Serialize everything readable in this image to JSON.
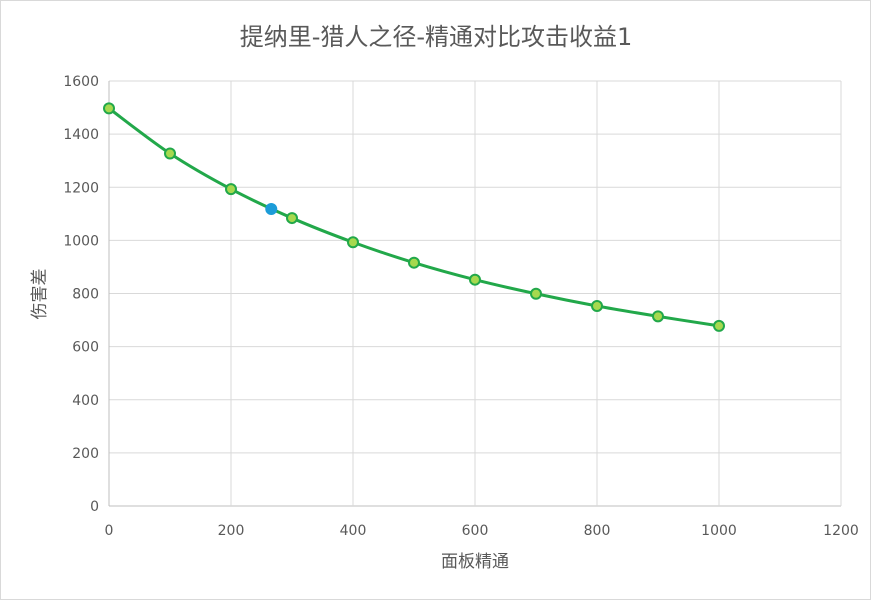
{
  "chart_data": {
    "type": "scatter",
    "title": "提纳里-猎人之径-精通对比攻击收益1",
    "xlabel": "面板精通",
    "ylabel": "伤害差",
    "xlim": [
      0,
      1200
    ],
    "ylim": [
      0,
      1600
    ],
    "xticks": [
      "0",
      "200",
      "400",
      "600",
      "800",
      "1000",
      "1200"
    ],
    "yticks": [
      "0",
      "200",
      "400",
      "600",
      "800",
      "1000",
      "1200",
      "1400",
      "1600"
    ],
    "grid": true,
    "legend": "none",
    "series": [
      {
        "color": "#22a84a",
        "marker_fill": "#a6d94f",
        "x": [
          0,
          100,
          200,
          300,
          400,
          500,
          600,
          700,
          800,
          900,
          1000
        ],
        "y": [
          1497,
          1327,
          1193,
          1084,
          993,
          916,
          852,
          799,
          753,
          714,
          678
        ]
      },
      {
        "color": "#1c9cd8",
        "marker_fill": "#1c9cd8",
        "x": [
          266
        ],
        "y": [
          1118
        ]
      }
    ]
  }
}
